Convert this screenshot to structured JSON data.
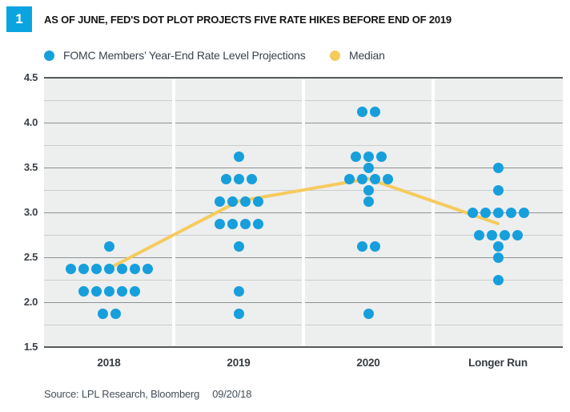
{
  "figure": {
    "badge": "1",
    "title": "AS OF JUNE, FED'S DOT PLOT PROJECTS FIVE RATE HIKES BEFORE END OF 2019",
    "source": "Source: LPL Research, Bloomberg",
    "date": "09/20/18"
  },
  "legend": {
    "items": [
      {
        "label": "FOMC Members’ Year-End Rate Level Projections",
        "color": "#169FDB"
      },
      {
        "label": "Median",
        "color": "#F5CB5E"
      }
    ]
  },
  "colors": {
    "badge_blue": "#0AA5E0",
    "dot_blue": "#169FDB",
    "median_yellow": "#F5CB5E",
    "plot_background": "#EDEEEE",
    "grid_major": "#8F9293",
    "grid_minor": "#CBCECE",
    "grid_edge": "#56595B",
    "column_separator": "#FFFFFF",
    "text_dark": "#39434D"
  },
  "chart_data": {
    "type": "scatter",
    "subtype": "fed-dot-plot",
    "title": "AS OF JUNE, FED'S DOT PLOT PROJECTS FIVE RATE HIKES BEFORE END OF 2019",
    "categories": [
      "2018",
      "2019",
      "2020",
      "Longer Run"
    ],
    "xlabel": "",
    "ylabel": "",
    "y_axis": {
      "min": 1.5,
      "max": 4.5,
      "major_step": 0.5,
      "minor_step": 0.25,
      "tick_labels": [
        "4.5",
        "4.0",
        "3.5",
        "3.0",
        "2.5",
        "2.0",
        "1.5"
      ]
    },
    "grid": "horizontal major 0.5 / minor 0.25, white column separators",
    "legend_position": "top",
    "series": [
      {
        "name": "FOMC Members’ Year-End Rate Level Projections",
        "type": "dot_cluster",
        "color": "#169FDB",
        "data": [
          {
            "category": "2018",
            "clusters": [
              {
                "rate": 2.625,
                "count": 1
              },
              {
                "rate": 2.375,
                "count": 7
              },
              {
                "rate": 2.125,
                "count": 5
              },
              {
                "rate": 1.875,
                "count": 2
              }
            ]
          },
          {
            "category": "2019",
            "clusters": [
              {
                "rate": 3.625,
                "count": 1
              },
              {
                "rate": 3.375,
                "count": 3
              },
              {
                "rate": 3.125,
                "count": 4
              },
              {
                "rate": 2.875,
                "count": 4
              },
              {
                "rate": 2.625,
                "count": 1
              },
              {
                "rate": 2.125,
                "count": 1
              },
              {
                "rate": 1.875,
                "count": 1
              }
            ]
          },
          {
            "category": "2020",
            "clusters": [
              {
                "rate": 4.125,
                "count": 2
              },
              {
                "rate": 3.625,
                "count": 3
              },
              {
                "rate": 3.5,
                "count": 1
              },
              {
                "rate": 3.375,
                "count": 4
              },
              {
                "rate": 3.25,
                "count": 1
              },
              {
                "rate": 3.125,
                "count": 1
              },
              {
                "rate": 2.625,
                "count": 2
              },
              {
                "rate": 1.875,
                "count": 1
              }
            ]
          },
          {
            "category": "Longer Run",
            "clusters": [
              {
                "rate": 3.5,
                "count": 1
              },
              {
                "rate": 3.25,
                "count": 1
              },
              {
                "rate": 3.0,
                "count": 5
              },
              {
                "rate": 2.75,
                "count": 4
              },
              {
                "rate": 2.625,
                "count": 1
              },
              {
                "rate": 2.5,
                "count": 1
              },
              {
                "rate": 2.25,
                "count": 1
              }
            ]
          }
        ]
      },
      {
        "name": "Median",
        "type": "line",
        "color": "#F5CB5E",
        "values": [
          2.375,
          3.125,
          3.375,
          2.875
        ]
      }
    ]
  }
}
